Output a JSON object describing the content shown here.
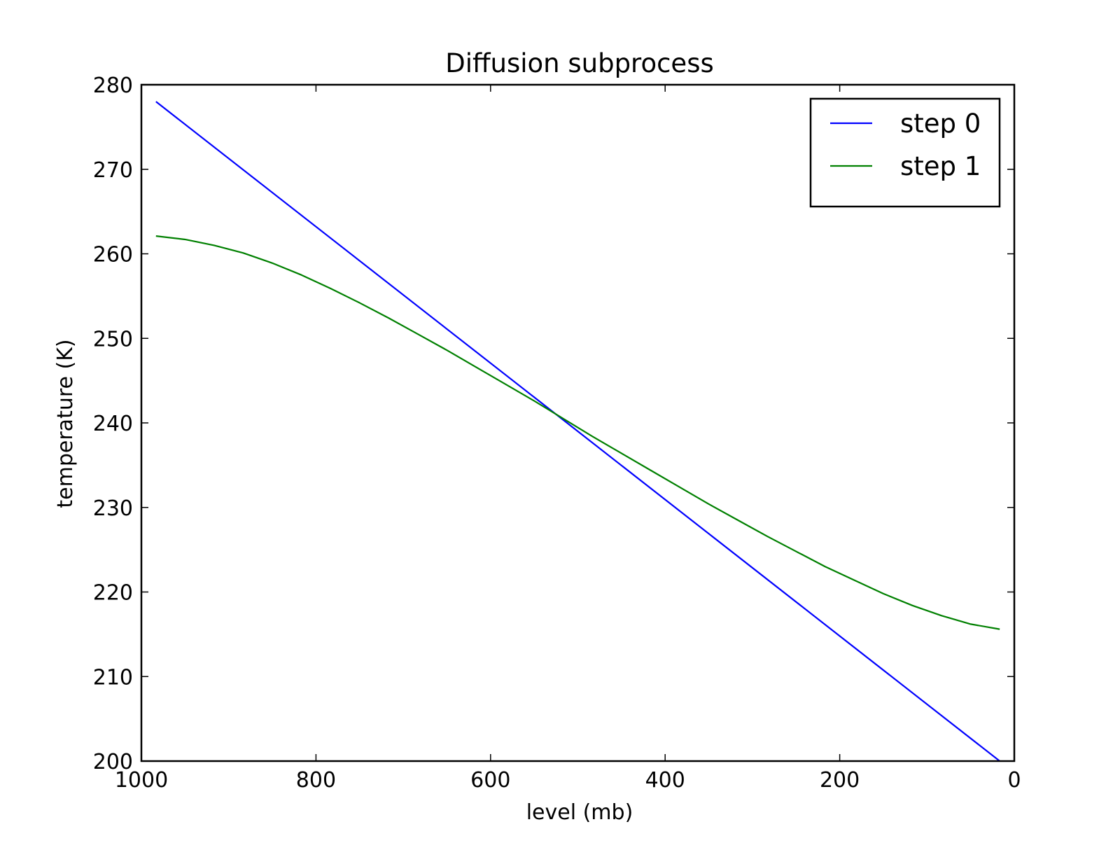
{
  "chart_data": {
    "type": "line",
    "title": "Diffusion subprocess",
    "xlabel": "level (mb)",
    "ylabel": "temperature (K)",
    "xlim": [
      1000,
      0
    ],
    "ylim": [
      200,
      280
    ],
    "x_reversed": true,
    "grid": false,
    "legend_position": "top-right",
    "xticks": [
      1000,
      800,
      600,
      400,
      200,
      0
    ],
    "xtick_labels": [
      "1000",
      "800",
      "600",
      "400",
      "200",
      "0"
    ],
    "yticks": [
      200,
      210,
      220,
      230,
      240,
      250,
      260,
      270,
      280
    ],
    "ytick_labels": [
      "200",
      "210",
      "220",
      "230",
      "240",
      "250",
      "260",
      "270",
      "280"
    ],
    "series": [
      {
        "name": "step 0",
        "color": "#0000ff",
        "x": [
          983.3,
          16.7
        ],
        "y": [
          278,
          200
        ]
      },
      {
        "name": "step 1",
        "color": "#008000",
        "x": [
          983.3,
          950,
          916.7,
          883.3,
          850,
          816.7,
          783.3,
          750,
          716.7,
          683.3,
          650,
          616.7,
          583.3,
          550,
          516.7,
          483.3,
          450,
          416.7,
          383.3,
          350,
          316.7,
          283.3,
          250,
          216.7,
          183.3,
          150,
          116.7,
          83.3,
          50,
          16.7
        ],
        "y": [
          262.1,
          261.7,
          261.0,
          260.1,
          258.9,
          257.5,
          255.9,
          254.2,
          252.4,
          250.5,
          248.6,
          246.6,
          244.6,
          242.6,
          240.5,
          238.4,
          236.4,
          234.4,
          232.4,
          230.4,
          228.5,
          226.6,
          224.8,
          223.0,
          221.4,
          219.8,
          218.4,
          217.2,
          216.2,
          215.6
        ]
      }
    ]
  }
}
